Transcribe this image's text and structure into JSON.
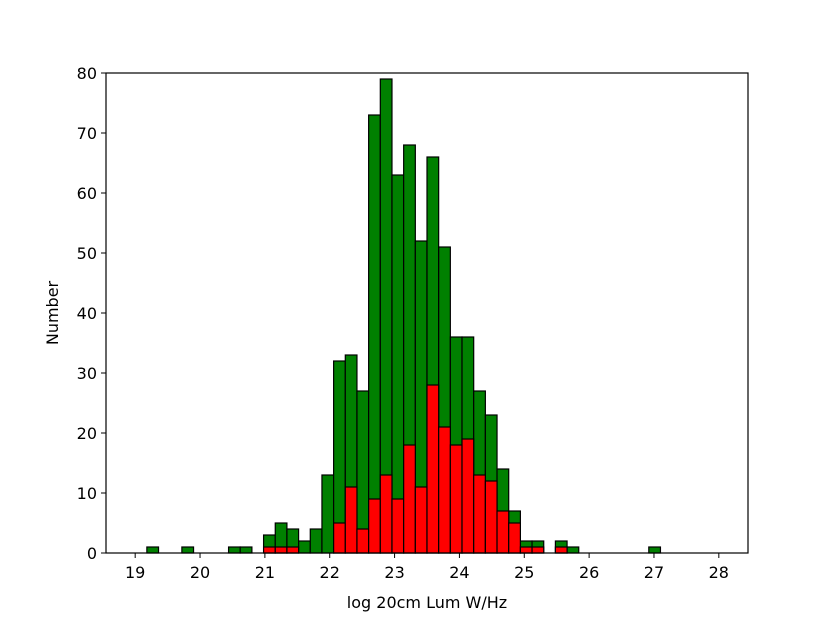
{
  "chart_data": {
    "type": "histogram",
    "xlabel": "log 20cm Lum W/Hz",
    "ylabel": "Number",
    "bins": [
      19,
      19.18,
      19.36,
      19.54,
      19.72,
      19.9,
      20.08,
      20.26,
      20.44,
      20.62,
      20.8,
      20.98,
      21.16,
      21.34,
      21.52,
      21.7,
      21.88,
      22.06,
      22.24,
      22.42,
      22.6,
      22.78,
      22.96,
      23.14,
      23.32,
      23.5,
      23.68,
      23.86,
      24.04,
      24.22,
      24.4,
      24.58,
      24.76,
      24.94,
      25.12,
      25.3,
      25.48,
      25.66,
      25.84,
      26.02,
      26.2,
      26.38,
      26.56,
      26.74,
      26.92,
      27.1,
      27.28,
      27.46,
      27.64,
      27.82,
      28
    ],
    "series": [
      {
        "color": "#008000",
        "values": [
          0,
          1,
          0,
          0,
          1,
          0,
          0,
          0,
          1,
          1,
          0,
          3,
          5,
          4,
          2,
          4,
          13,
          32,
          33,
          27,
          73,
          79,
          63,
          68,
          52,
          66,
          51,
          36,
          36,
          27,
          23,
          14,
          7,
          2,
          2,
          0,
          2,
          1,
          0,
          0,
          0,
          0,
          0,
          0,
          1,
          0,
          0,
          0,
          0,
          0
        ]
      },
      {
        "color": "#ff0000",
        "values": [
          0,
          0,
          0,
          0,
          0,
          0,
          0,
          0,
          0,
          0,
          0,
          1,
          1,
          1,
          0,
          0,
          0,
          5,
          11,
          4,
          9,
          13,
          9,
          18,
          11,
          28,
          21,
          18,
          19,
          13,
          12,
          7,
          5,
          1,
          1,
          0,
          1,
          0,
          0,
          0,
          0,
          0,
          0,
          0,
          0,
          0,
          0,
          0,
          0,
          0
        ]
      }
    ],
    "xlim": [
      18.55,
      28.45
    ],
    "ylim": [
      0,
      80
    ],
    "xticks": [
      19,
      20,
      21,
      22,
      23,
      24,
      25,
      26,
      27,
      28
    ],
    "yticks": [
      0,
      10,
      20,
      30,
      40,
      50,
      60,
      70,
      80
    ]
  }
}
